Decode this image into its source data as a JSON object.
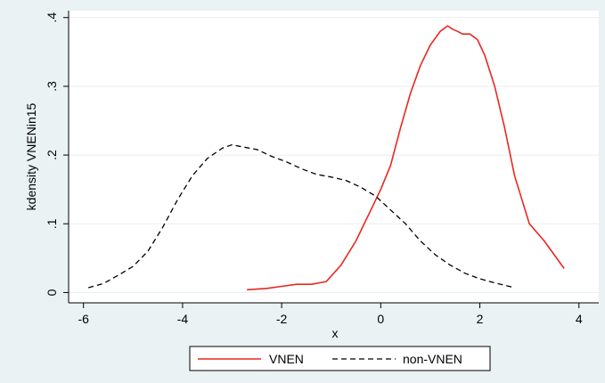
{
  "colors": {
    "background": "#eaf2f3",
    "plot_area": "#ffffff",
    "vnen": "#e8281f",
    "non_vnen": "#000000"
  },
  "chart_data": {
    "type": "line",
    "title": "",
    "xlabel": "x",
    "ylabel": "kdensity VNENin15",
    "xlim": [
      -6.3,
      4.4
    ],
    "ylim": [
      -0.015,
      0.41
    ],
    "x_ticks": [
      {
        "value": -6,
        "label": "-6"
      },
      {
        "value": -4,
        "label": "-4"
      },
      {
        "value": -2,
        "label": "-2"
      },
      {
        "value": 0,
        "label": "0"
      },
      {
        "value": 2,
        "label": "2"
      },
      {
        "value": 4,
        "label": "4"
      }
    ],
    "y_ticks": [
      {
        "value": 0,
        "label": "0"
      },
      {
        "value": 0.1,
        "label": ".1"
      },
      {
        "value": 0.2,
        "label": ".2"
      },
      {
        "value": 0.3,
        "label": ".3"
      },
      {
        "value": 0.4,
        "label": ".4"
      }
    ],
    "grid": "horizontal",
    "legend_position": "bottom",
    "series": [
      {
        "name": "VNEN",
        "style": "solid",
        "color": "#e8281f",
        "x": [
          -2.7,
          -2.3,
          -2.0,
          -1.7,
          -1.4,
          -1.1,
          -0.8,
          -0.5,
          -0.2,
          0.0,
          0.2,
          0.4,
          0.6,
          0.8,
          1.0,
          1.2,
          1.35,
          1.45,
          1.55,
          1.65,
          1.8,
          1.95,
          2.1,
          2.3,
          2.5,
          2.7,
          3.0,
          3.3,
          3.7
        ],
        "y": [
          0.004,
          0.006,
          0.009,
          0.012,
          0.012,
          0.016,
          0.04,
          0.075,
          0.12,
          0.15,
          0.185,
          0.24,
          0.29,
          0.33,
          0.36,
          0.38,
          0.388,
          0.383,
          0.38,
          0.376,
          0.376,
          0.368,
          0.345,
          0.3,
          0.24,
          0.17,
          0.1,
          0.075,
          0.035
        ]
      },
      {
        "name": "non-VNEN",
        "style": "dashed",
        "color": "#000000",
        "x": [
          -5.9,
          -5.6,
          -5.3,
          -5.0,
          -4.7,
          -4.4,
          -4.1,
          -3.8,
          -3.5,
          -3.2,
          -3.0,
          -2.8,
          -2.5,
          -2.2,
          -1.9,
          -1.6,
          -1.3,
          -1.0,
          -0.7,
          -0.4,
          -0.1,
          0.2,
          0.5,
          0.8,
          1.1,
          1.4,
          1.7,
          2.0,
          2.3,
          2.7
        ],
        "y": [
          0.007,
          0.013,
          0.025,
          0.038,
          0.06,
          0.095,
          0.135,
          0.17,
          0.195,
          0.21,
          0.215,
          0.212,
          0.208,
          0.198,
          0.19,
          0.18,
          0.172,
          0.168,
          0.163,
          0.153,
          0.14,
          0.12,
          0.1,
          0.075,
          0.055,
          0.04,
          0.028,
          0.02,
          0.014,
          0.007
        ]
      }
    ]
  }
}
